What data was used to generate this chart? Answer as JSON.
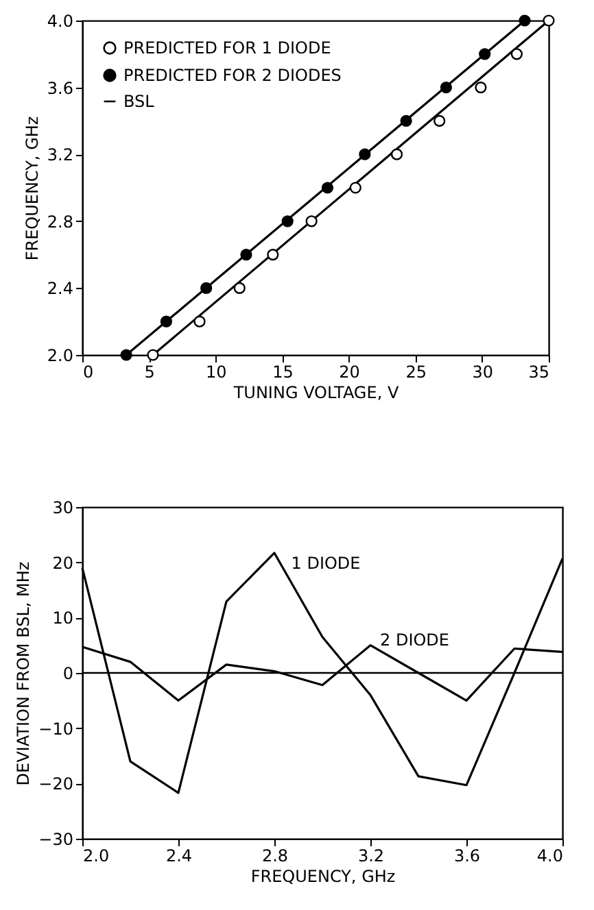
{
  "chart_data": [
    {
      "type": "scatter",
      "xlabel": "TUNING VOLTAGE, V",
      "ylabel": "FREQUENCY, GHz",
      "xlim": [
        0,
        35
      ],
      "xticks": [
        0,
        5,
        10,
        15,
        20,
        25,
        30,
        35
      ],
      "ylim": [
        2.0,
        4.0
      ],
      "yticks": [
        {
          "value": 2,
          "label": "2.0"
        },
        {
          "value": 2.4,
          "label": "2.4"
        },
        {
          "value": 2.8,
          "label": "2.8"
        },
        {
          "value": 3.2,
          "label": "3.2"
        },
        {
          "value": 3.6,
          "label": "3.6"
        },
        {
          "value": 4,
          "label": "4.0"
        }
      ],
      "legend": "top left",
      "series": [
        {
          "name": "PREDICTED FOR 1 DIODE",
          "marker": "circle",
          "color": "#000000",
          "x": [
            5.3,
            8.8,
            11.8,
            14.3,
            17.2,
            20.5,
            23.6,
            26.8,
            29.9,
            32.6,
            35
          ],
          "values": [
            2.0,
            2.2,
            2.4,
            2.6,
            2.8,
            3.0,
            3.2,
            3.4,
            3.6,
            3.8,
            4.0
          ]
        },
        {
          "name": "PREDICTED FOR 2 DIODES",
          "marker": "circle",
          "color": "#000000",
          "x": [
            3.3,
            6.3,
            9.3,
            12.3,
            15.4,
            18.4,
            21.2,
            24.3,
            27.3,
            30.2,
            33.2
          ],
          "values": [
            2.0,
            2.2,
            2.4,
            2.6,
            2.8,
            3.0,
            3.2,
            3.4,
            3.6,
            3.8,
            4.0
          ]
        },
        {
          "name": "BSL",
          "type": "line",
          "color": "#000000",
          "x": [
            5.3,
            35
          ],
          "values": [
            2.0,
            4.0
          ]
        },
        {
          "type": "line",
          "color": "#000000",
          "x": [
            3.3,
            33.2
          ],
          "values": [
            2.0,
            4.0
          ]
        }
      ]
    },
    {
      "type": "line",
      "xlabel": "FREQUENCY, GHz",
      "ylabel": "DEVIATION FROM BSL, MHz",
      "x": [
        2.0,
        2.2,
        2.4,
        2.6,
        2.8,
        3.0,
        3.2,
        3.4,
        3.6,
        3.8,
        4.0
      ],
      "xlim": [
        2.0,
        4.0
      ],
      "xticks": [
        {
          "value": 2,
          "label": "2.0"
        },
        {
          "value": 2.4,
          "label": "2.4"
        },
        {
          "value": 2.8,
          "label": "2.8"
        },
        {
          "value": 3.2,
          "label": "3.2"
        },
        {
          "value": 3.6,
          "label": "3.6"
        },
        {
          "value": 4,
          "label": "4.0"
        }
      ],
      "ylim": [
        -30,
        30
      ],
      "yticks": [
        -30,
        -20,
        -10,
        0,
        10,
        20,
        30
      ],
      "series": [
        {
          "color": "#000000",
          "values": [
            19,
            -16,
            -21.7,
            12.9,
            21.7,
            6.5,
            -4,
            -18.7,
            -20.3,
            0,
            20.7
          ]
        },
        {
          "color": "#000000",
          "values": [
            4.7,
            2,
            -5,
            1.5,
            0.3,
            -2.2,
            5,
            0,
            -5,
            4.4,
            3.8
          ]
        }
      ],
      "ref_lines": [
        {
          "axis": "y",
          "value": 0,
          "color": "#000000"
        }
      ],
      "annotations": [
        "1 DIODE",
        "2 DIODE"
      ]
    }
  ]
}
